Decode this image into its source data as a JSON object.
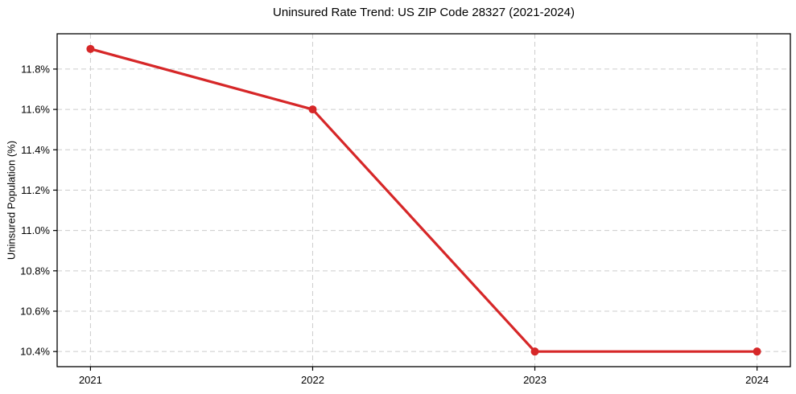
{
  "figure": {
    "background_color": "#ffffff"
  },
  "chart_data": {
    "type": "line",
    "title": "Uninsured Rate Trend: US ZIP Code 28327 (2021-2024)",
    "xlabel": "",
    "ylabel": "Uninsured Population (%)",
    "x": [
      2021,
      2022,
      2023,
      2024
    ],
    "xtick_labels": [
      "2021",
      "2022",
      "2023",
      "2024"
    ],
    "series": [
      {
        "name": "uninsured-rate",
        "values": [
          11.9,
          11.6,
          10.4,
          10.4
        ],
        "color": "#d62728",
        "marker": "circle"
      }
    ],
    "yticks": [
      10.4,
      10.6,
      10.8,
      11.0,
      11.2,
      11.4,
      11.6,
      11.8
    ],
    "ytick_labels": [
      "10.4%",
      "10.6%",
      "10.8%",
      "11.0%",
      "11.2%",
      "11.4%",
      "11.6%",
      "11.8%"
    ],
    "ylim": [
      10.325,
      11.975
    ],
    "xlim": [
      2020.85,
      2024.15
    ],
    "grid": true,
    "grid_style": "dashed",
    "grid_color": "#cccccc",
    "axis_color": "#000000",
    "text_color": "#000000",
    "legend_position": "none"
  }
}
